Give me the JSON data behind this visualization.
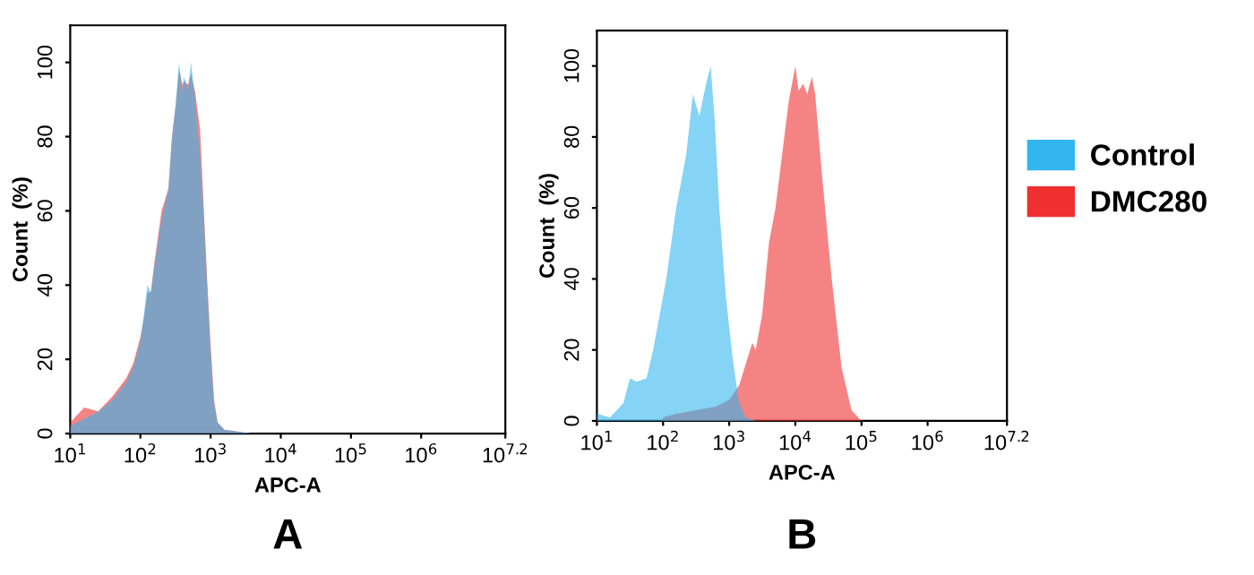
{
  "chart_data": [
    {
      "type": "area",
      "title": "A",
      "xlabel": "APC-A",
      "ylabel": "Count  (%)",
      "log": "x",
      "xlim": [
        10,
        15848932
      ],
      "ylim": [
        0,
        110
      ],
      "xticks": [
        {
          "value": 10,
          "label": "10$^{1}$"
        },
        {
          "value": 100,
          "label": "10$^{2}$"
        },
        {
          "value": 1000,
          "label": "10$^{3}$"
        },
        {
          "value": 10000,
          "label": "10$^{4}$"
        },
        {
          "value": 100000,
          "label": "10$^{5}$"
        },
        {
          "value": 1000000,
          "label": "10$^{6}$"
        },
        {
          "value": 15848932,
          "label": "10$^{7.2}$"
        }
      ],
      "yticks": [
        0,
        20,
        40,
        60,
        80,
        100
      ],
      "grid": false,
      "legend": false,
      "series": [
        {
          "color": "#33b5ef",
          "x": [
            10,
            15.8,
            25.1,
            39.8,
            63.1,
            79.4,
            100,
            112,
            126,
            141,
            158,
            200,
            251,
            282,
            316,
            355,
            398,
            417,
            479,
            525,
            603,
            708,
            794,
            891,
            1000,
            1122,
            1259,
            1585,
            2512,
            3981
          ],
          "values": [
            2,
            4,
            6,
            9,
            14,
            18,
            25,
            32,
            40,
            38,
            45,
            58,
            66,
            80,
            88,
            100,
            92,
            96,
            93,
            100,
            90,
            75,
            60,
            40,
            22,
            8,
            3,
            1,
            0.5,
            0
          ]
        },
        {
          "color": "#f03030",
          "x": [
            10,
            15.8,
            25.1,
            39.8,
            63.1,
            79.4,
            100,
            112,
            126,
            141,
            158,
            200,
            251,
            282,
            316,
            355,
            398,
            417,
            479,
            525,
            603,
            708,
            794,
            891,
            1000,
            1122,
            1259,
            1585,
            2512,
            3981
          ],
          "values": [
            3,
            7,
            6,
            10,
            15,
            19,
            26,
            31,
            38,
            38,
            46,
            60,
            66,
            80,
            88,
            98,
            94,
            95,
            94,
            97,
            92,
            82,
            62,
            42,
            24,
            9,
            3,
            1,
            0.5,
            0
          ]
        }
      ]
    },
    {
      "type": "area",
      "title": "B",
      "xlabel": "APC-A",
      "ylabel": "Count  (%)",
      "log": "x",
      "xlim": [
        10,
        15848932
      ],
      "ylim": [
        0,
        110
      ],
      "xticks": [
        {
          "value": 10,
          "label": "10$^{1}$"
        },
        {
          "value": 100,
          "label": "10$^{2}$"
        },
        {
          "value": 1000,
          "label": "10$^{3}$"
        },
        {
          "value": 10000,
          "label": "10$^{4}$"
        },
        {
          "value": 100000,
          "label": "10$^{5}$"
        },
        {
          "value": 1000000,
          "label": "10$^{6}$"
        },
        {
          "value": 15848932,
          "label": "10$^{7.2}$"
        }
      ],
      "yticks": [
        0,
        20,
        40,
        60,
        80,
        100
      ],
      "grid": false,
      "legend": "right",
      "series": [
        {
          "name": "Control",
          "color": "#33b5ef",
          "x": [
            10,
            15.8,
            25.1,
            31.6,
            39.8,
            56.2,
            70.8,
            89.1,
            112,
            158,
            224,
            282,
            355,
            447,
            525,
            603,
            708,
            891,
            1122,
            1413,
            1778,
            2512
          ],
          "values": [
            2,
            1,
            5,
            12,
            11,
            12,
            20,
            30,
            40,
            60,
            75,
            92,
            86,
            95,
            100,
            85,
            60,
            35,
            18,
            5,
            1,
            0
          ]
        },
        {
          "name": "DMC280",
          "color": "#f03030",
          "x": [
            100,
            158,
            316,
            631,
            1000,
            1413,
            1778,
            2239,
            2512,
            3162,
            3981,
            5012,
            6310,
            7943,
            10000,
            11220,
            13183,
            15136,
            17783,
            19953,
            25119,
            35481,
            50119,
            70795,
            100000
          ],
          "values": [
            1,
            2,
            3,
            4,
            6,
            10,
            16,
            22,
            20,
            30,
            50,
            60,
            75,
            90,
            100,
            93,
            95,
            92,
            97,
            92,
            70,
            40,
            15,
            3,
            0
          ]
        }
      ]
    }
  ]
}
